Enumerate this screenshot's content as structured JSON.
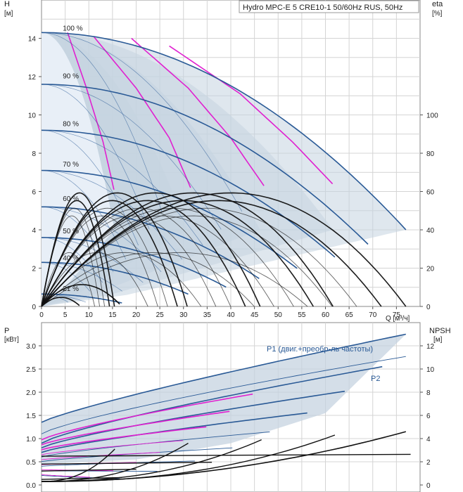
{
  "chart_data": [
    {
      "type": "line",
      "title": "Hydro MPC-E 5 CRE10-1 50/60Hz RUS, 50Hz",
      "xlabel": "Q [м³/ч]",
      "ylabel": "H\n[м]",
      "ylabel_right": "eta\n[%]",
      "xlim": [
        0,
        80
      ],
      "ylim": [
        0,
        16
      ],
      "ylim_right": [
        0,
        160
      ],
      "xticks": [
        0,
        5,
        10,
        15,
        20,
        25,
        30,
        35,
        40,
        45,
        50,
        55,
        60,
        65,
        70,
        75
      ],
      "yticks": [
        0,
        2,
        4,
        6,
        8,
        10,
        12,
        14
      ],
      "yticks_right": [
        0,
        20,
        40,
        60,
        80,
        100
      ],
      "grid": true,
      "speed_labels": [
        {
          "label": "100 %",
          "x": 4.5,
          "y": 14.3
        },
        {
          "label": "90 %",
          "x": 4.5,
          "y": 11.8
        },
        {
          "label": "80 %",
          "x": 4.5,
          "y": 9.3
        },
        {
          "label": "70 %",
          "x": 4.5,
          "y": 7.2
        },
        {
          "label": "60 %",
          "x": 4.5,
          "y": 5.4
        },
        {
          "label": "50 %",
          "x": 4.5,
          "y": 3.7
        },
        {
          "label": "40 %",
          "x": 4.5,
          "y": 2.3
        },
        {
          "label": "21 %",
          "x": 4.5,
          "y": 0.7
        }
      ],
      "head_curves": [
        {
          "name": "100 %",
          "h0": 14.3,
          "qmax": 77
        },
        {
          "name": "90 %",
          "h0": 11.6,
          "qmax": 69
        },
        {
          "name": "80 %",
          "h0": 9.2,
          "qmax": 62
        },
        {
          "name": "70 %",
          "h0": 7.1,
          "qmax": 54
        },
        {
          "name": "60 %",
          "h0": 5.2,
          "qmax": 46
        },
        {
          "name": "50 %",
          "h0": 3.6,
          "qmax": 39
        },
        {
          "name": "40 %",
          "h0": 2.3,
          "qmax": 31
        },
        {
          "name": "21 %",
          "h0": 0.65,
          "qmax": 17
        }
      ],
      "pump_counts": [
        1,
        2,
        3,
        4,
        5
      ],
      "single_pump_qmax": 15.5,
      "efficiency_peak": 64,
      "colors": {
        "head": "#2a5a96",
        "efficiency": "#111111",
        "boundary": "#e020d0",
        "region": "#c5d3e0",
        "grid": "#d4d4d4"
      }
    },
    {
      "type": "line",
      "xlabel": "",
      "ylabel": "P\n[кВт]",
      "ylabel_right": "NPSH\n[м]",
      "xlim": [
        0,
        80
      ],
      "ylim": [
        0,
        3.5
      ],
      "ylim_right": [
        0,
        14
      ],
      "yticks": [
        0.0,
        0.5,
        1.0,
        1.5,
        2.0,
        2.5,
        3.0
      ],
      "ytick_labels": [
        "0.0",
        "0.5",
        "1.0",
        "1.5",
        "2.0",
        "2.5",
        "3.0"
      ],
      "yticks_right": [
        0,
        2,
        4,
        6,
        8,
        10,
        12
      ],
      "grid": true,
      "annotations": [
        "P1 (двиг.+преобр-ль частоты)",
        "P2"
      ],
      "p1_curve": {
        "start": 1.35,
        "end": 3.25,
        "qmax": 77
      },
      "p2_curve": {
        "start": 1.1,
        "end": 2.77,
        "qmax": 77
      },
      "npsh_curve": {
        "start": 0.3,
        "end": 4.6,
        "qmax": 77
      }
    }
  ]
}
